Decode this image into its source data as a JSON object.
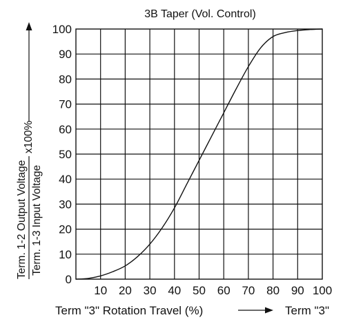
{
  "chart_data": {
    "type": "line",
    "title": "3B Taper (Vol. Control)",
    "xlabel": "Term \"3\" Rotation Travel (%)",
    "xlabel_end": "Term \"3\"",
    "ylabel_numerator": "Term. 1-2 Output Voltage",
    "ylabel_denominator": "Term. 1-3 Input Voltage",
    "ylabel_suffix": "x100%",
    "xlim": [
      0,
      100
    ],
    "ylim": [
      0,
      100
    ],
    "grid": true,
    "x_ticks": [
      "10",
      "20",
      "30",
      "40",
      "50",
      "60",
      "70",
      "80",
      "90",
      "100"
    ],
    "y_ticks": [
      "0",
      "10",
      "20",
      "30",
      "40",
      "50",
      "60",
      "70",
      "80",
      "90",
      "100"
    ],
    "series": [
      {
        "x": [
          0,
          5,
          10,
          15,
          20,
          25,
          30,
          35,
          40,
          45,
          50,
          55,
          60,
          65,
          70,
          75,
          80,
          85,
          90,
          95,
          100
        ],
        "y": [
          0,
          0.3,
          1.3,
          3,
          5.3,
          9,
          14,
          20.5,
          28.5,
          38,
          47.5,
          57,
          66.5,
          76,
          85,
          92.5,
          97,
          98.6,
          99.4,
          99.8,
          100
        ]
      }
    ]
  }
}
